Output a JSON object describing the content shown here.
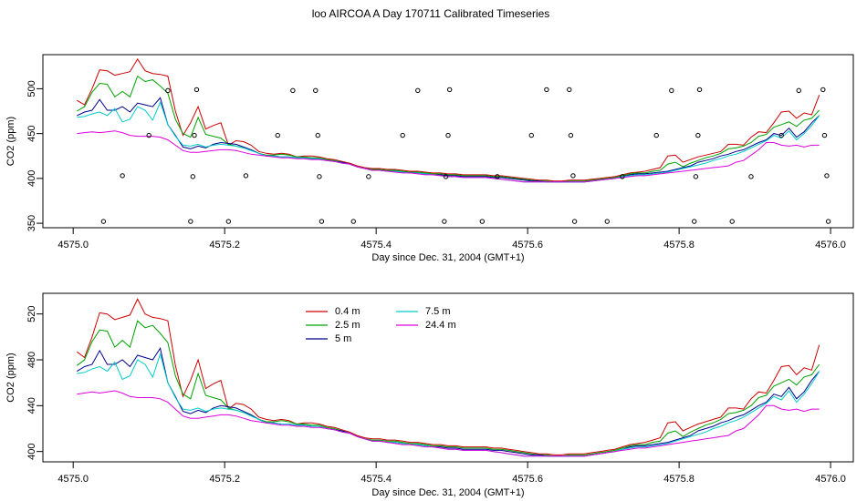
{
  "page": {
    "title": "loo AIRCOA A  Day 170711  Calibrated Timeseries"
  },
  "chart_data": [
    {
      "type": "line",
      "id": "top",
      "xlabel": "Day since Dec. 31, 2004 (GMT+1)",
      "ylabel": "CO2 (ppm)",
      "xlim": [
        4574.96,
        4576.03
      ],
      "ylim": [
        345,
        538
      ],
      "xticks": [
        4575.0,
        4575.2,
        4575.4,
        4575.6,
        4575.8,
        4576.0
      ],
      "xtick_labels": [
        "4575.0",
        "4575.2",
        "4575.4",
        "4575.6",
        "4575.8",
        "4576.0"
      ],
      "yticks": [
        350,
        400,
        450,
        500
      ],
      "ytick_labels": [
        "350",
        "400",
        "450",
        "500"
      ],
      "x": [
        4575.005,
        4575.015,
        4575.025,
        4575.035,
        4575.045,
        4575.055,
        4575.065,
        4575.075,
        4575.085,
        4575.095,
        4575.105,
        4575.115,
        4575.125,
        4575.135,
        4575.145,
        4575.155,
        4575.165,
        4575.175,
        4575.185,
        4575.195,
        4575.205,
        4575.215,
        4575.225,
        4575.235,
        4575.245,
        4575.255,
        4575.265,
        4575.275,
        4575.285,
        4575.295,
        4575.305,
        4575.315,
        4575.325,
        4575.335,
        4575.345,
        4575.355,
        4575.365,
        4575.375,
        4575.385,
        4575.395,
        4575.405,
        4575.415,
        4575.425,
        4575.435,
        4575.445,
        4575.455,
        4575.465,
        4575.475,
        4575.485,
        4575.495,
        4575.505,
        4575.515,
        4575.525,
        4575.535,
        4575.545,
        4575.555,
        4575.565,
        4575.575,
        4575.585,
        4575.595,
        4575.605,
        4575.615,
        4575.625,
        4575.635,
        4575.645,
        4575.655,
        4575.665,
        4575.675,
        4575.685,
        4575.695,
        4575.705,
        4575.715,
        4575.725,
        4575.735,
        4575.745,
        4575.755,
        4575.765,
        4575.775,
        4575.785,
        4575.795,
        4575.805,
        4575.815,
        4575.825,
        4575.835,
        4575.845,
        4575.855,
        4575.865,
        4575.875,
        4575.885,
        4575.895,
        4575.905,
        4575.915,
        4575.925,
        4575.935,
        4575.945,
        4575.955,
        4575.965,
        4575.975,
        4575.985
      ],
      "series": [
        {
          "name": "0.4 m",
          "color": "#cc0000",
          "values": [
            487,
            482,
            500,
            521,
            520,
            515,
            517,
            519,
            533,
            520,
            517,
            516,
            514,
            475,
            448,
            462,
            480,
            455,
            459,
            462,
            437,
            442,
            441,
            437,
            430,
            428,
            427,
            428,
            427,
            424,
            425,
            425,
            424,
            422,
            421,
            419,
            417,
            414,
            412,
            411,
            411,
            410,
            410,
            409,
            408,
            408,
            407,
            406,
            406,
            405,
            405,
            404,
            404,
            404,
            404,
            403,
            403,
            402,
            401,
            400,
            399,
            398,
            398,
            397,
            397,
            398,
            398,
            398,
            399,
            400,
            401,
            402,
            404,
            406,
            407,
            408,
            410,
            412,
            425,
            426,
            418,
            421,
            424,
            426,
            428,
            430,
            438,
            438,
            437,
            446,
            452,
            451,
            462,
            474,
            475,
            467,
            473,
            471,
            493
          ]
        },
        {
          "name": "2.5 m",
          "color": "#00a000",
          "values": [
            475,
            480,
            496,
            506,
            505,
            491,
            497,
            491,
            514,
            508,
            510,
            503,
            495,
            466,
            450,
            446,
            468,
            449,
            447,
            445,
            438,
            436,
            434,
            432,
            428,
            426,
            426,
            427,
            426,
            424,
            424,
            423,
            423,
            421,
            420,
            418,
            416,
            413,
            411,
            410,
            410,
            409,
            409,
            408,
            407,
            407,
            406,
            405,
            405,
            404,
            404,
            403,
            403,
            403,
            403,
            402,
            402,
            401,
            400,
            399,
            398,
            397,
            397,
            396,
            396,
            397,
            397,
            397,
            398,
            399,
            400,
            401,
            403,
            405,
            406,
            406,
            408,
            409,
            416,
            418,
            413,
            417,
            420,
            423,
            425,
            428,
            433,
            434,
            436,
            440,
            447,
            449,
            457,
            460,
            463,
            458,
            465,
            467,
            476
          ]
        },
        {
          "name": "5 m",
          "color": "#00008b",
          "values": [
            470,
            474,
            476,
            488,
            476,
            476,
            480,
            474,
            484,
            482,
            480,
            490,
            460,
            448,
            435,
            433,
            436,
            434,
            438,
            440,
            439,
            438,
            435,
            432,
            428,
            425,
            425,
            424,
            424,
            423,
            423,
            422,
            422,
            420,
            419,
            418,
            416,
            413,
            411,
            409,
            409,
            408,
            408,
            407,
            406,
            406,
            405,
            404,
            404,
            403,
            403,
            402,
            402,
            402,
            402,
            401,
            401,
            400,
            399,
            398,
            397,
            397,
            396,
            396,
            396,
            396,
            396,
            396,
            397,
            398,
            399,
            400,
            402,
            404,
            405,
            405,
            406,
            407,
            408,
            410,
            412,
            414,
            418,
            420,
            422,
            425,
            427,
            430,
            432,
            436,
            440,
            443,
            450,
            448,
            456,
            446,
            452,
            462,
            470
          ]
        },
        {
          "name": "7.5 m",
          "color": "#00cccc",
          "values": [
            468,
            469,
            472,
            474,
            470,
            478,
            463,
            466,
            480,
            476,
            465,
            485,
            460,
            447,
            437,
            436,
            438,
            435,
            437,
            438,
            437,
            436,
            434,
            431,
            428,
            425,
            425,
            424,
            424,
            423,
            423,
            422,
            422,
            420,
            419,
            417,
            416,
            413,
            411,
            409,
            409,
            408,
            408,
            407,
            406,
            406,
            405,
            404,
            403,
            402,
            402,
            401,
            401,
            401,
            401,
            400,
            399,
            398,
            397,
            396,
            396,
            396,
            396,
            396,
            396,
            396,
            396,
            396,
            397,
            398,
            399,
            400,
            402,
            403,
            404,
            404,
            405,
            406,
            407,
            409,
            411,
            413,
            415,
            417,
            420,
            422,
            425,
            427,
            430,
            434,
            438,
            442,
            448,
            445,
            453,
            443,
            450,
            459,
            470
          ]
        },
        {
          "name": "24.4 m",
          "color": "#dd00dd",
          "values": [
            450,
            451,
            452,
            451,
            452,
            453,
            451,
            448,
            447,
            447,
            447,
            446,
            443,
            437,
            431,
            429,
            429,
            430,
            431,
            432,
            432,
            431,
            429,
            427,
            426,
            425,
            424,
            423,
            423,
            422,
            422,
            421,
            421,
            420,
            419,
            417,
            416,
            413,
            411,
            409,
            409,
            408,
            407,
            406,
            406,
            405,
            404,
            404,
            403,
            402,
            402,
            401,
            401,
            401,
            401,
            400,
            399,
            398,
            397,
            396,
            396,
            396,
            396,
            396,
            396,
            396,
            396,
            396,
            397,
            398,
            399,
            400,
            401,
            402,
            403,
            403,
            404,
            405,
            406,
            407,
            408,
            409,
            410,
            411,
            412,
            413,
            414,
            418,
            420,
            426,
            432,
            440,
            440,
            437,
            436,
            437,
            435,
            437,
            437
          ]
        }
      ],
      "scatter": {
        "name": "calibration-points",
        "color": "#000000",
        "points": [
          [
            4575.04,
            352
          ],
          [
            4575.065,
            403
          ],
          [
            4575.1,
            448
          ],
          [
            4575.125,
            498
          ],
          [
            4575.155,
            352
          ],
          [
            4575.158,
            402
          ],
          [
            4575.16,
            448
          ],
          [
            4575.163,
            499
          ],
          [
            4575.205,
            352
          ],
          [
            4575.228,
            403
          ],
          [
            4575.27,
            448
          ],
          [
            4575.29,
            498
          ],
          [
            4575.32,
            498
          ],
          [
            4575.323,
            448
          ],
          [
            4575.325,
            402
          ],
          [
            4575.328,
            352
          ],
          [
            4575.37,
            352
          ],
          [
            4575.39,
            402
          ],
          [
            4575.435,
            448
          ],
          [
            4575.455,
            498
          ],
          [
            4575.49,
            352
          ],
          [
            4575.492,
            402
          ],
          [
            4575.495,
            448
          ],
          [
            4575.497,
            499
          ],
          [
            4575.54,
            352
          ],
          [
            4575.56,
            402
          ],
          [
            4575.605,
            448
          ],
          [
            4575.625,
            499
          ],
          [
            4575.655,
            499
          ],
          [
            4575.657,
            448
          ],
          [
            4575.66,
            403
          ],
          [
            4575.662,
            352
          ],
          [
            4575.705,
            352
          ],
          [
            4575.725,
            402
          ],
          [
            4575.77,
            448
          ],
          [
            4575.79,
            498
          ],
          [
            4575.82,
            352
          ],
          [
            4575.822,
            402
          ],
          [
            4575.825,
            448
          ],
          [
            4575.827,
            499
          ],
          [
            4575.87,
            352
          ],
          [
            4575.895,
            402
          ],
          [
            4575.935,
            448
          ],
          [
            4575.958,
            498
          ],
          [
            4575.99,
            499
          ],
          [
            4575.992,
            448
          ],
          [
            4575.995,
            403
          ],
          [
            4575.997,
            352
          ]
        ]
      }
    },
    {
      "type": "line",
      "id": "bottom",
      "xlabel": "Day since Dec. 31, 2004 (GMT+1)",
      "ylabel": "CO2 (ppm)",
      "xlim": [
        4574.96,
        4576.03
      ],
      "ylim": [
        391,
        538
      ],
      "xticks": [
        4575.0,
        4575.2,
        4575.4,
        4575.6,
        4575.8,
        4576.0
      ],
      "xtick_labels": [
        "4575.0",
        "4575.2",
        "4575.4",
        "4575.6",
        "4575.8",
        "4576.0"
      ],
      "yticks": [
        400,
        440,
        480,
        520
      ],
      "ytick_labels": [
        "400",
        "440",
        "480",
        "520"
      ],
      "legend": {
        "placement": "top-left",
        "entries": [
          {
            "label": "0.4 m",
            "color": "#cc0000"
          },
          {
            "label": "2.5 m",
            "color": "#00a000"
          },
          {
            "label": "5 m",
            "color": "#00008b"
          },
          {
            "label": "7.5 m",
            "color": "#00cccc"
          },
          {
            "label": "24.4 m",
            "color": "#dd00dd"
          }
        ]
      },
      "series_ref": "top"
    }
  ]
}
